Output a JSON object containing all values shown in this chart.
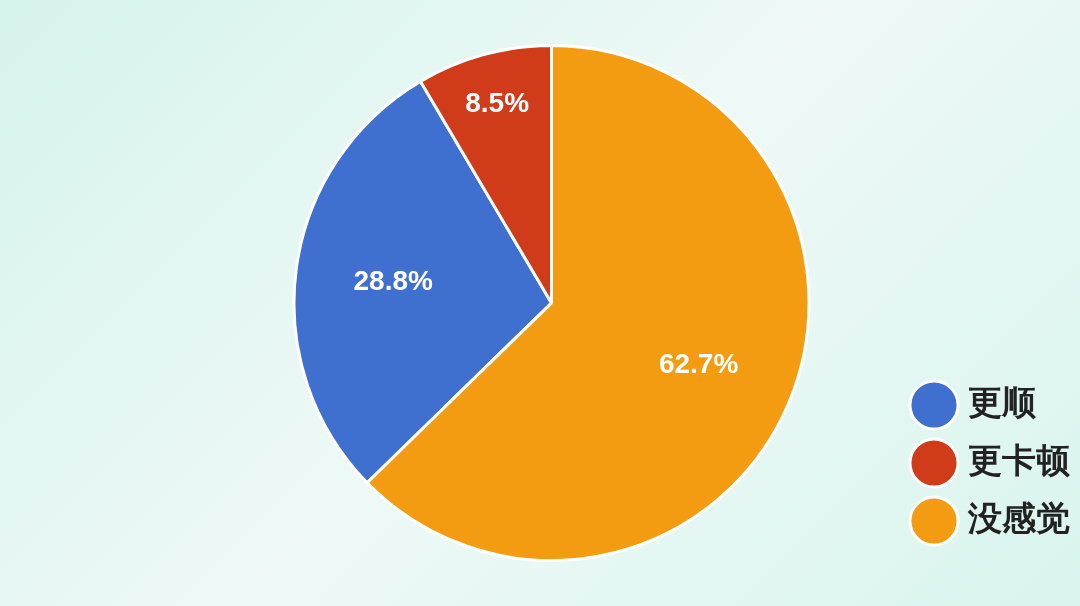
{
  "chart_data": {
    "type": "pie",
    "categories": [
      "更顺",
      "更卡顿",
      "没感觉"
    ],
    "values": [
      28.8,
      8.5,
      62.7
    ],
    "colors": [
      "#3f6fcf",
      "#d03b1a",
      "#f39c12"
    ],
    "value_labels": [
      "28.8%",
      "8.5%",
      "62.7%"
    ],
    "legend": "right"
  }
}
